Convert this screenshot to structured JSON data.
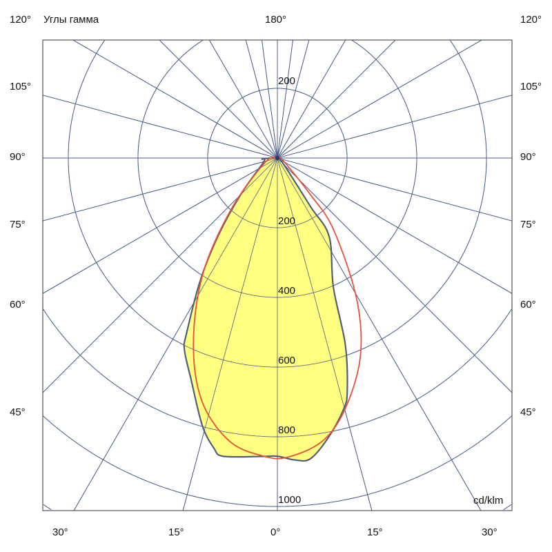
{
  "chart_data": {
    "type": "polar",
    "title": "Углы гамма",
    "unit": "cd/klm",
    "top_angle_label": "180°",
    "side_angle_labels": [
      "120°",
      "105°",
      "90°",
      "75°",
      "60°",
      "45°"
    ],
    "bottom_angle_labels": [
      "30°",
      "15°",
      "0°",
      "15°",
      "30°"
    ],
    "radial_labels_upper": [
      "200"
    ],
    "radial_labels_lower": [
      "200",
      "400",
      "600",
      "800",
      "1000"
    ],
    "radial_grid": [
      200,
      400,
      600,
      800,
      1000,
      1200,
      1400
    ],
    "angle_grid_step_deg": 15,
    "extra_angle_lines_deg": [
      172.5,
      187.5
    ],
    "grid": true,
    "colors": {
      "grid": "#4a5d8c",
      "fill": "#ffff80",
      "outline": "#4f5f7a",
      "red": "#e8503a",
      "frame": "#555555"
    },
    "series": [
      {
        "color": "#4f5f7a",
        "filled": true,
        "points": [
          [
            -85.5,
            43
          ],
          [
            -74,
            41
          ],
          [
            -45.6,
            143
          ],
          [
            -37.5,
            276
          ],
          [
            -32.2,
            415
          ],
          [
            -27.4,
            566
          ],
          [
            -25.9,
            611
          ],
          [
            -21.3,
            682
          ],
          [
            -15.7,
            797
          ],
          [
            -12.3,
            853
          ],
          [
            -10.3,
            870
          ],
          [
            -3.3,
            858
          ],
          [
            0,
            856
          ],
          [
            3.3,
            868
          ],
          [
            6.3,
            868
          ],
          [
            10.5,
            813
          ],
          [
            14.8,
            745
          ],
          [
            16.7,
            698
          ],
          [
            20,
            570
          ],
          [
            23.4,
            405
          ],
          [
            33.4,
            270
          ],
          [
            34.3,
            170
          ],
          [
            47,
            22
          ]
        ]
      },
      {
        "color": "#e8503a",
        "filled": false,
        "points": [
          [
            -68.4,
            40
          ],
          [
            -41.6,
            205
          ],
          [
            -32.5,
            401
          ],
          [
            -24.2,
            588
          ],
          [
            -17.1,
            733
          ],
          [
            -9.5,
            825
          ],
          [
            -2.5,
            857
          ],
          [
            2,
            859
          ],
          [
            9,
            823
          ],
          [
            15.1,
            746
          ],
          [
            22.7,
            617
          ],
          [
            29.4,
            463
          ],
          [
            38.1,
            261
          ],
          [
            42,
            143
          ],
          [
            66,
            18
          ]
        ]
      }
    ]
  }
}
